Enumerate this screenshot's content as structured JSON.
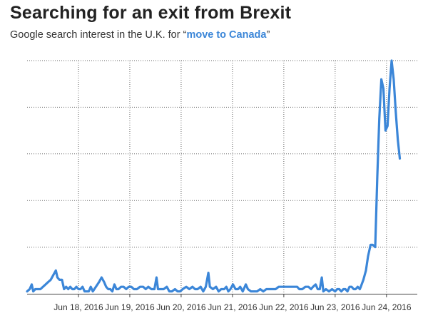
{
  "title": "Searching for an exit from Brexit",
  "subtitle": {
    "prefix": "Google search interest in the U.K. for ",
    "open_quote": "“",
    "term": "move to Canada",
    "close_quote": "”"
  },
  "colors": {
    "line": "#3b86d8",
    "grid": "#666666",
    "axis": "#444444",
    "text": "#333333",
    "term": "#3b86d8"
  },
  "chart_data": {
    "type": "line",
    "title": "Searching for an exit from Brexit",
    "subtitle": "Google search interest in the U.K. for “move to Canada”",
    "xlabel": "",
    "ylabel": "",
    "x_unit": "days since midnight Jun 17, 2016 (hourly)",
    "xlim": [
      0,
      7.6
    ],
    "ylim": [
      0,
      100
    ],
    "grid": true,
    "y_tick_labels_shown": false,
    "y_gridlines": [
      20,
      40,
      60,
      80,
      100
    ],
    "x_ticks": [
      {
        "x": 1,
        "label": "Jun 18, 2016"
      },
      {
        "x": 2,
        "label": "Jun 19, 2016"
      },
      {
        "x": 3,
        "label": "Jun 20, 2016"
      },
      {
        "x": 4,
        "label": "Jun 21, 2016"
      },
      {
        "x": 5,
        "label": "Jun 22, 2016"
      },
      {
        "x": 6,
        "label": "Jun 23, 2016"
      },
      {
        "x": 7,
        "label": "Jun 24, 2016"
      }
    ],
    "series": [
      {
        "name": "move to Canada",
        "points": [
          [
            0.0,
            1
          ],
          [
            0.05,
            2
          ],
          [
            0.09,
            4
          ],
          [
            0.12,
            1
          ],
          [
            0.16,
            2
          ],
          [
            0.21,
            2
          ],
          [
            0.26,
            2
          ],
          [
            0.31,
            3
          ],
          [
            0.36,
            4
          ],
          [
            0.41,
            5
          ],
          [
            0.46,
            6
          ],
          [
            0.51,
            8
          ],
          [
            0.56,
            10
          ],
          [
            0.59,
            7
          ],
          [
            0.63,
            6
          ],
          [
            0.68,
            6
          ],
          [
            0.72,
            2
          ],
          [
            0.76,
            3
          ],
          [
            0.8,
            2
          ],
          [
            0.84,
            3
          ],
          [
            0.88,
            2
          ],
          [
            0.92,
            2
          ],
          [
            0.96,
            3
          ],
          [
            1.0,
            2
          ],
          [
            1.04,
            2
          ],
          [
            1.08,
            3
          ],
          [
            1.12,
            1
          ],
          [
            1.16,
            1
          ],
          [
            1.2,
            1
          ],
          [
            1.24,
            3
          ],
          [
            1.28,
            1
          ],
          [
            1.34,
            3
          ],
          [
            1.4,
            5
          ],
          [
            1.45,
            7
          ],
          [
            1.5,
            5
          ],
          [
            1.54,
            3
          ],
          [
            1.58,
            2
          ],
          [
            1.62,
            2
          ],
          [
            1.66,
            1
          ],
          [
            1.7,
            4
          ],
          [
            1.74,
            2
          ],
          [
            1.78,
            2
          ],
          [
            1.83,
            3
          ],
          [
            1.88,
            3
          ],
          [
            1.93,
            2
          ],
          [
            1.98,
            3
          ],
          [
            2.03,
            3
          ],
          [
            2.08,
            2
          ],
          [
            2.14,
            2
          ],
          [
            2.2,
            3
          ],
          [
            2.26,
            3
          ],
          [
            2.31,
            2
          ],
          [
            2.36,
            3
          ],
          [
            2.42,
            2
          ],
          [
            2.48,
            2
          ],
          [
            2.52,
            7
          ],
          [
            2.55,
            2
          ],
          [
            2.6,
            2
          ],
          [
            2.66,
            2
          ],
          [
            2.72,
            3
          ],
          [
            2.77,
            1
          ],
          [
            2.82,
            1
          ],
          [
            2.88,
            2
          ],
          [
            2.93,
            1
          ],
          [
            2.98,
            1
          ],
          [
            3.03,
            2
          ],
          [
            3.1,
            3
          ],
          [
            3.16,
            2
          ],
          [
            3.22,
            3
          ],
          [
            3.27,
            2
          ],
          [
            3.32,
            2
          ],
          [
            3.38,
            3
          ],
          [
            3.43,
            1
          ],
          [
            3.48,
            3
          ],
          [
            3.53,
            9
          ],
          [
            3.56,
            3
          ],
          [
            3.62,
            2
          ],
          [
            3.68,
            3
          ],
          [
            3.73,
            1
          ],
          [
            3.78,
            2
          ],
          [
            3.84,
            2
          ],
          [
            3.88,
            3
          ],
          [
            3.92,
            1
          ],
          [
            3.96,
            2
          ],
          [
            4.01,
            4
          ],
          [
            4.06,
            2
          ],
          [
            4.11,
            2
          ],
          [
            4.15,
            3
          ],
          [
            4.2,
            1
          ],
          [
            4.26,
            4
          ],
          [
            4.3,
            2
          ],
          [
            4.36,
            1
          ],
          [
            4.42,
            1
          ],
          [
            4.48,
            1
          ],
          [
            4.54,
            2
          ],
          [
            4.6,
            1
          ],
          [
            4.66,
            2
          ],
          [
            4.72,
            2
          ],
          [
            4.78,
            2
          ],
          [
            4.84,
            2
          ],
          [
            4.9,
            3
          ],
          [
            4.96,
            3
          ],
          [
            5.02,
            3
          ],
          [
            5.08,
            3
          ],
          [
            5.14,
            3
          ],
          [
            5.2,
            3
          ],
          [
            5.26,
            3
          ],
          [
            5.3,
            2
          ],
          [
            5.36,
            2
          ],
          [
            5.42,
            3
          ],
          [
            5.48,
            3
          ],
          [
            5.53,
            2
          ],
          [
            5.57,
            3
          ],
          [
            5.62,
            4
          ],
          [
            5.66,
            2
          ],
          [
            5.7,
            2
          ],
          [
            5.74,
            7
          ],
          [
            5.77,
            1
          ],
          [
            5.82,
            2
          ],
          [
            5.88,
            1
          ],
          [
            5.94,
            2
          ],
          [
            6.0,
            1
          ],
          [
            6.04,
            2
          ],
          [
            6.08,
            2
          ],
          [
            6.12,
            1
          ],
          [
            6.16,
            2
          ],
          [
            6.2,
            2
          ],
          [
            6.24,
            1
          ],
          [
            6.28,
            3
          ],
          [
            6.32,
            3
          ],
          [
            6.36,
            2
          ],
          [
            6.4,
            2
          ],
          [
            6.44,
            3
          ],
          [
            6.48,
            2
          ],
          [
            6.5,
            3
          ],
          [
            6.55,
            6
          ],
          [
            6.6,
            10
          ],
          [
            6.64,
            16
          ],
          [
            6.69,
            21
          ],
          [
            6.73,
            21
          ],
          [
            6.78,
            20
          ],
          [
            6.82,
            50
          ],
          [
            6.86,
            75
          ],
          [
            6.9,
            92
          ],
          [
            6.94,
            88
          ],
          [
            6.98,
            70
          ],
          [
            7.02,
            72
          ],
          [
            7.06,
            88
          ],
          [
            7.1,
            100
          ],
          [
            7.14,
            92
          ],
          [
            7.18,
            78
          ],
          [
            7.22,
            66
          ],
          [
            7.26,
            58
          ]
        ]
      }
    ]
  }
}
